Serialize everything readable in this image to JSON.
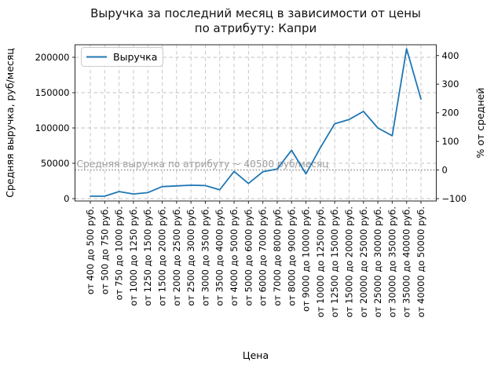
{
  "chart_data": {
    "type": "line",
    "title": "Выручка за последний месяц в зависимости от цены\nпо атрибуту: Капри",
    "xlabel": "Цена",
    "ylabel_left": "Средняя выручка, руб/месяц",
    "ylabel_right": "% от средней",
    "legend": {
      "entries": [
        "Выручка"
      ],
      "position": "upper left"
    },
    "grid": true,
    "categories": [
      "от 400 до 500 руб.",
      "от 500 до 750 руб.",
      "от 750 до 1000 руб.",
      "от 1000 до 1250 руб.",
      "от 1250 до 1500 руб.",
      "от 1500 до 2000 руб.",
      "от 2000 до 2500 руб.",
      "от 2500 до 3000 руб.",
      "от 3000 до 3500 руб.",
      "от 3500 до 4000 руб.",
      "от 4000 до 5000 руб.",
      "от 5000 до 6000 руб.",
      "от 6000 до 7000 руб.",
      "от 7000 до 8000 руб.",
      "от 8000 до 9000 руб.",
      "от 9000 до 10000 руб.",
      "от 10000 до 12500 руб.",
      "от 12500 до 15000 руб.",
      "от 15000 до 20000 руб.",
      "от 20000 до 25000 руб.",
      "от 25000 до 30000 руб.",
      "от 30000 до 35000 руб.",
      "от 35000 до 40000 руб.",
      "от 40000 до 50000 руб."
    ],
    "series": [
      {
        "name": "Выручка",
        "color": "#1f77b4",
        "values": [
          3500,
          3500,
          10000,
          6500,
          8500,
          17000,
          18000,
          19000,
          18500,
          12500,
          38500,
          21500,
          38000,
          42000,
          68500,
          35000,
          72000,
          106000,
          112000,
          123500,
          100000,
          89000,
          212000,
          141000
        ]
      }
    ],
    "yticks_left": [
      0,
      50000,
      100000,
      150000,
      200000
    ],
    "yticks_right_percent": [
      -100,
      0,
      100,
      200,
      300,
      400
    ],
    "yticks_right_labels": [
      "−100",
      "0",
      "100",
      "200",
      "300",
      "400"
    ],
    "ylim_left": [
      0,
      218000
    ],
    "average_line": {
      "value": 40500,
      "label": "Средняя выручка по атрибуту ~ 40500 руб/месяц",
      "style": "dotted"
    },
    "colors": {
      "line": "#1f77b4",
      "grid": "#c2c2c2",
      "spine": "#262626",
      "tick_text": "#000000",
      "annotation": "#9e9e9e",
      "average_line": "#8c8c8c",
      "legend_border": "#cccccc",
      "background": "#ffffff"
    }
  }
}
